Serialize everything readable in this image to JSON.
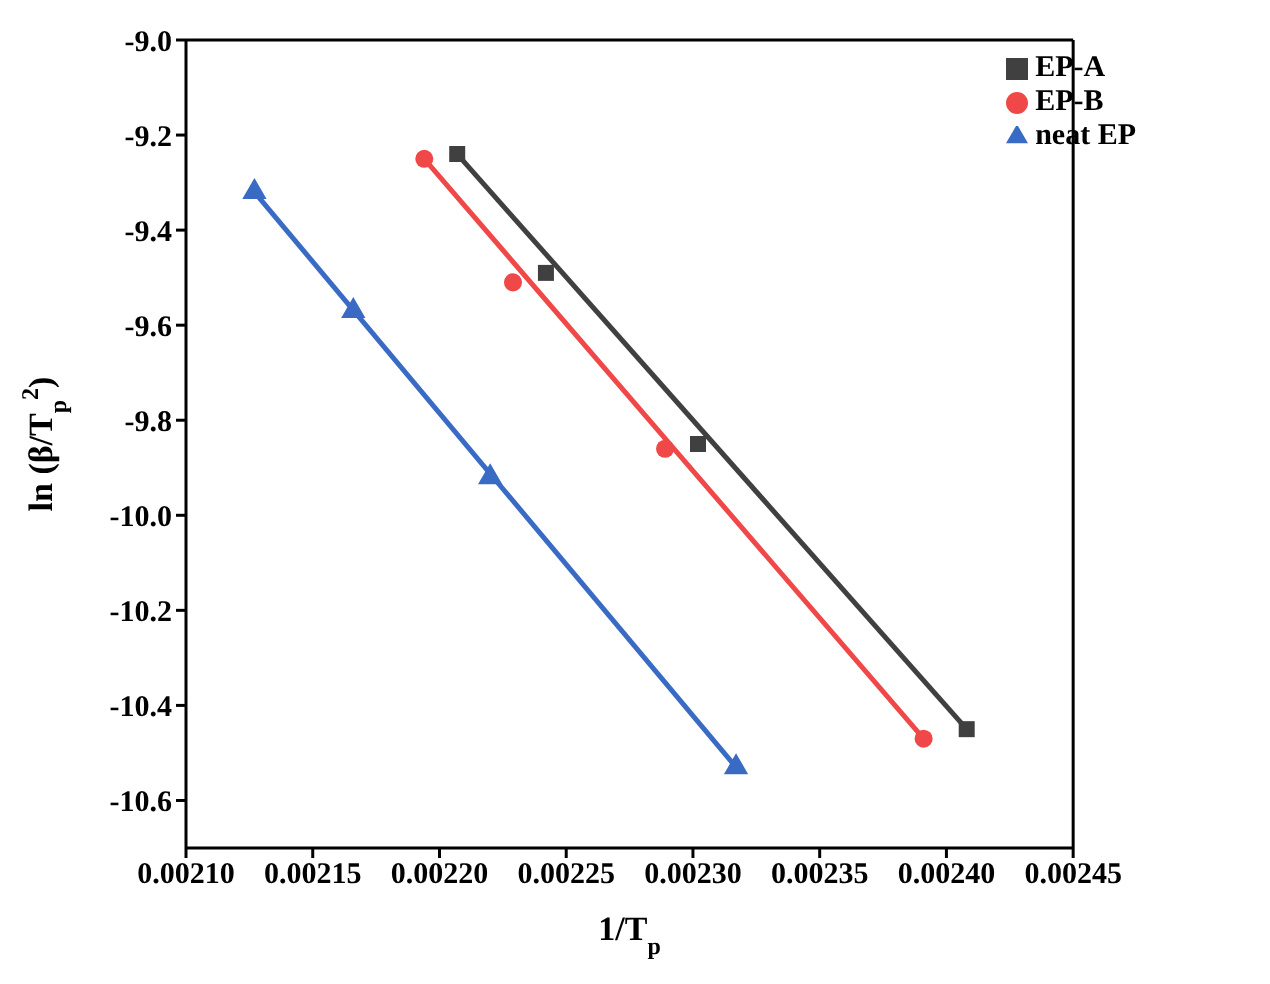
{
  "chart_data": {
    "type": "scatter",
    "xlabel": "1/T$_{p}$",
    "ylabel": "ln (β/T$_{p}$$^{2}$)",
    "xlim": [
      0.0021,
      0.00245
    ],
    "ylim": [
      -10.7,
      -9.0
    ],
    "xticks": [
      {
        "value": 0.0021,
        "label": "0.00210"
      },
      {
        "value": 0.00215,
        "label": "0.00215"
      },
      {
        "value": 0.0022,
        "label": "0.00220"
      },
      {
        "value": 0.00225,
        "label": "0.00225"
      },
      {
        "value": 0.0023,
        "label": "0.00230"
      },
      {
        "value": 0.00235,
        "label": "0.00235"
      },
      {
        "value": 0.0024,
        "label": "0.00240"
      },
      {
        "value": 0.00245,
        "label": "0.00245"
      }
    ],
    "yticks": [
      {
        "value": -10.6,
        "label": "-10.6"
      },
      {
        "value": -10.4,
        "label": "-10.4"
      },
      {
        "value": -10.2,
        "label": "-10.2"
      },
      {
        "value": -10.0,
        "label": "-10.0"
      },
      {
        "value": -9.8,
        "label": "-9.8"
      },
      {
        "value": -9.6,
        "label": "-9.6"
      },
      {
        "value": -9.4,
        "label": "-9.4"
      },
      {
        "value": -9.2,
        "label": "-9.2"
      },
      {
        "value": -9.0,
        "label": "-9.0"
      }
    ],
    "legend": "top right",
    "grid": false,
    "series": [
      {
        "name": "EP-A",
        "marker": "square",
        "color": "#404040",
        "x": [
          0.002207,
          0.002242,
          0.002302,
          0.002408
        ],
        "values": [
          -9.24,
          -9.49,
          -9.85,
          -10.45
        ]
      },
      {
        "name": "EP-B",
        "marker": "circle",
        "color": "#f04848",
        "x": [
          0.002194,
          0.002229,
          0.002289,
          0.002391
        ],
        "values": [
          -9.25,
          -9.51,
          -9.86,
          -10.47
        ]
      },
      {
        "name": "neat EP",
        "marker": "triangle",
        "color": "#3a6bc4",
        "x": [
          0.002127,
          0.002166,
          0.00222,
          0.002317
        ],
        "values": [
          -9.32,
          -9.57,
          -9.92,
          -10.53
        ]
      },
      {
        "type": "line",
        "color": "#404040",
        "x": [
          0.002207,
          0.002408
        ],
        "values": [
          -9.24,
          -10.45
        ]
      },
      {
        "type": "line",
        "color": "#f04848",
        "x": [
          0.002194,
          0.002391
        ],
        "values": [
          -9.25,
          -10.47
        ]
      },
      {
        "type": "line",
        "color": "#3a6bc4",
        "x": [
          0.002127,
          0.002317
        ],
        "values": [
          -9.32,
          -10.53
        ]
      }
    ]
  }
}
